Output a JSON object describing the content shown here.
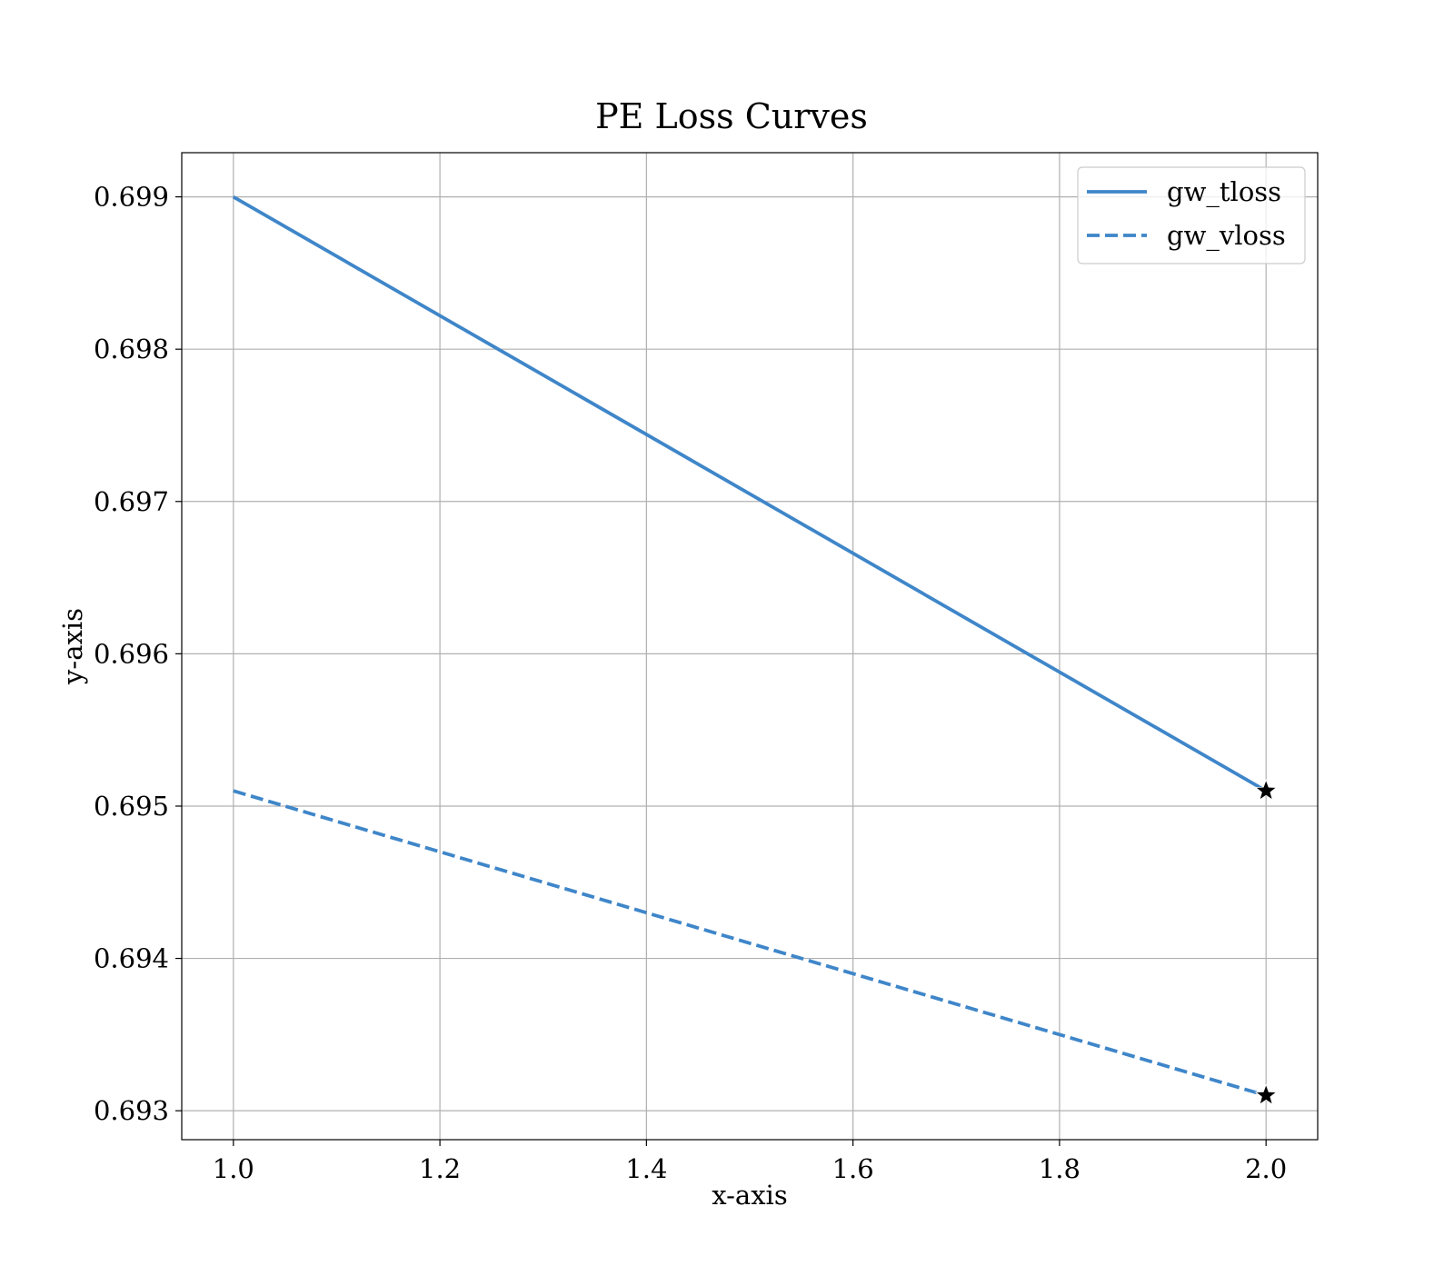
{
  "chart_data": {
    "type": "line",
    "title": "PE Loss Curves",
    "xlabel": "x-axis",
    "ylabel": "y-axis",
    "xlim": [
      0.95,
      2.05
    ],
    "ylim": [
      0.69281,
      0.69929
    ],
    "xticks": [
      1.0,
      1.2,
      1.4,
      1.6,
      1.8,
      2.0
    ],
    "xtick_labels": [
      "1.0",
      "1.2",
      "1.4",
      "1.6",
      "1.8",
      "2.0"
    ],
    "yticks": [
      0.693,
      0.694,
      0.695,
      0.696,
      0.697,
      0.698,
      0.699
    ],
    "ytick_labels": [
      "0.693",
      "0.694",
      "0.695",
      "0.696",
      "0.697",
      "0.698",
      "0.699"
    ],
    "grid": true,
    "legend_position": "top-right",
    "series": [
      {
        "name": "gw_tloss",
        "style": "solid",
        "color": "#3f86c9",
        "x": [
          1.0,
          2.0
        ],
        "y": [
          0.699,
          0.6951
        ]
      },
      {
        "name": "gw_vloss",
        "style": "dashed",
        "color": "#3f86c9",
        "x": [
          1.0,
          2.0
        ],
        "y": [
          0.6951,
          0.6931
        ]
      }
    ],
    "annotations": [
      {
        "marker": "star",
        "color": "#000000",
        "x": 2.0,
        "y": 0.6951
      },
      {
        "marker": "star",
        "color": "#000000",
        "x": 2.0,
        "y": 0.6931
      }
    ]
  }
}
